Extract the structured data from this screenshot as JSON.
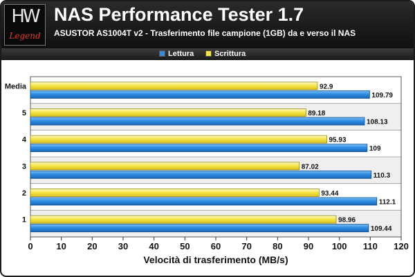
{
  "logo": {
    "mark": "HW",
    "text": "Legend"
  },
  "header": {
    "title": "NAS Performance Tester 1.7",
    "subtitle": "ASUSTOR AS1004T v2 - Trasferimento file campione (1GB) da e verso il NAS"
  },
  "colors": {
    "lettura": "#2f8de4",
    "scrittura": "#f6e548",
    "header_bg": "#1a1a1a"
  },
  "chart_data": {
    "type": "bar",
    "orientation": "horizontal",
    "categories": [
      "Media",
      "5",
      "4",
      "3",
      "2",
      "1"
    ],
    "series": [
      {
        "name": "Scrittura",
        "values": [
          92.9,
          89.18,
          95.93,
          87.02,
          93.44,
          98.96
        ]
      },
      {
        "name": "Lettura",
        "values": [
          109.79,
          108.13,
          109,
          110.3,
          112.1,
          109.44
        ]
      }
    ],
    "value_labels": {
      "Scrittura": [
        "92.9",
        "89.18",
        "95.93",
        "87.02",
        "93.44",
        "98.96"
      ],
      "Lettura": [
        "109.79",
        "108.13",
        "109",
        "110.3",
        "112.1",
        "109.44"
      ]
    },
    "legend": [
      "Lettura",
      "Scrittura"
    ],
    "legend_position": "top-center",
    "xlabel": "Velocità di trasferimento (MB/s)",
    "xlim": [
      0,
      120
    ],
    "xticks": [
      0,
      10,
      20,
      30,
      40,
      50,
      60,
      70,
      80,
      90,
      100,
      110,
      120
    ],
    "grid": false
  }
}
